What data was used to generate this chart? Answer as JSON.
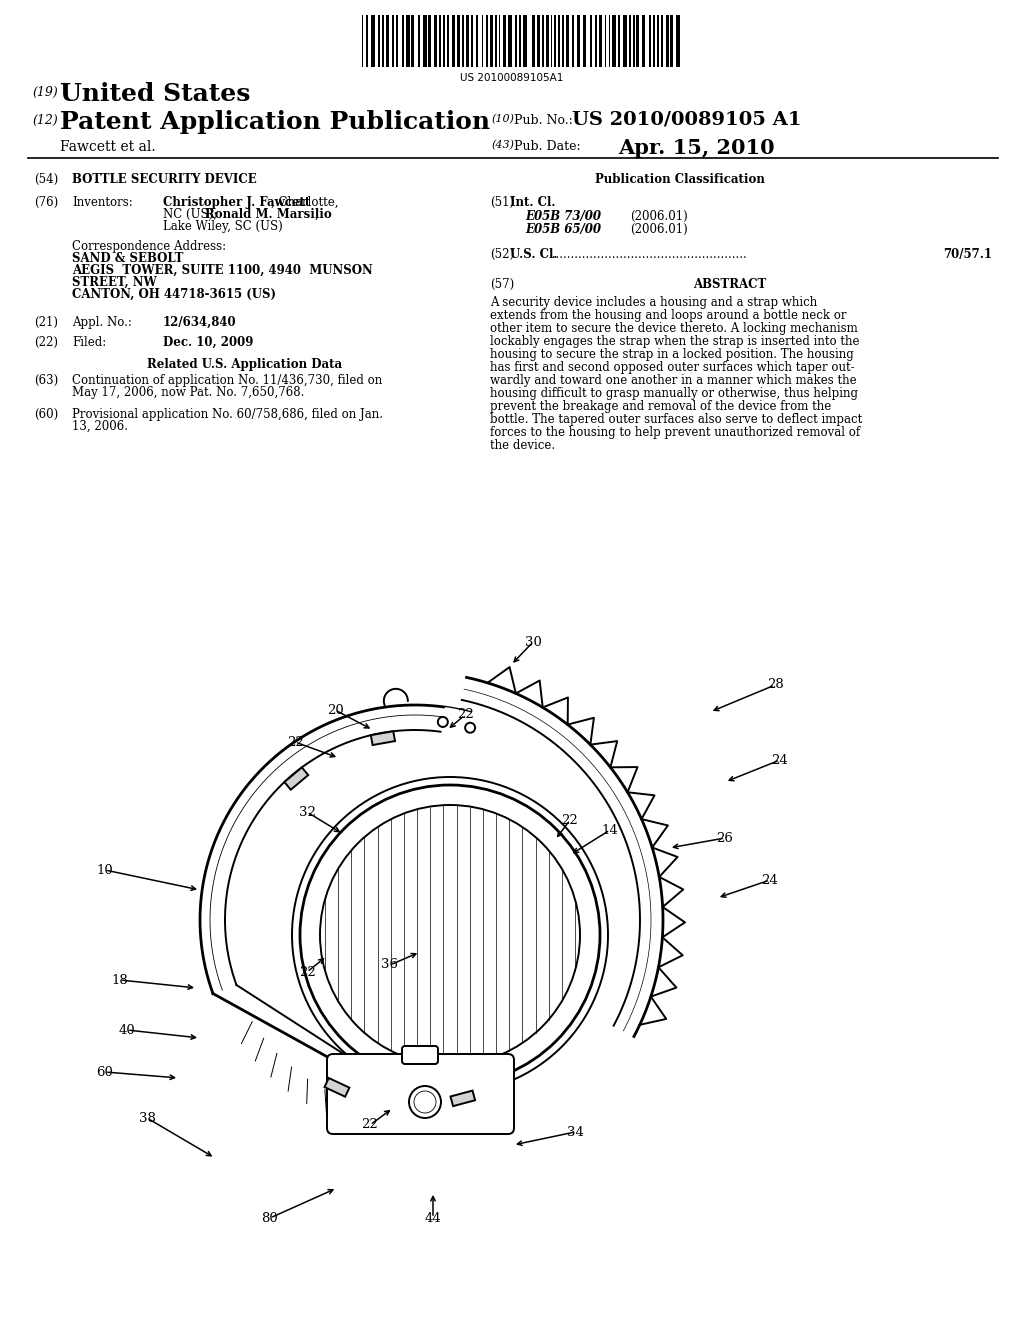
{
  "bg_color": "#ffffff",
  "barcode_text": "US 20100089105A1",
  "line1_num": "(19)",
  "line1_text": "United States",
  "line2_num": "(12)",
  "line2_text": "Patent Application Publication",
  "line2_right_num": "(10)",
  "line2_right_label": "Pub. No.:",
  "line2_right_val": "US 2010/0089105 A1",
  "line3_left": "Fawcett et al.",
  "line3_right_num": "(43)",
  "line3_right_label": "Pub. Date:",
  "line3_right_val": "Apr. 15, 2010",
  "sec54_num": "(54)",
  "sec54_title": "BOTTLE SECURITY DEVICE",
  "sec76_num": "(76)",
  "sec76_label": "Inventors:",
  "sec51_num": "(51)",
  "sec51_label": "Int. Cl.",
  "sec51_line1_code": "E05B 73/00",
  "sec51_line1_year": "(2006.01)",
  "sec51_line2_code": "E05B 65/00",
  "sec51_line2_year": "(2006.01)",
  "corr_label": "Correspondence Address:",
  "corr_line1": "SAND & SEBOLT",
  "corr_line2": "AEGIS  TOWER, SUITE 1100, 4940  MUNSON",
  "corr_line3": "STREET, NW",
  "corr_line4": "CANTON, OH 44718-3615 (US)",
  "sec21_num": "(21)",
  "sec21_label": "Appl. No.:",
  "sec21_val": "12/634,840",
  "sec22_num": "(22)",
  "sec22_label": "Filed:",
  "sec22_val": "Dec. 10, 2009",
  "related_title": "Related U.S. Application Data",
  "sec63_num": "(63)",
  "sec63_text1": "Continuation of application No. 11/436,730, filed on",
  "sec63_text2": "May 17, 2006, now Pat. No. 7,650,768.",
  "sec60_num": "(60)",
  "sec60_text1": "Provisional application No. 60/758,686, filed on Jan.",
  "sec60_text2": "13, 2006.",
  "pub_class_title": "Publication Classification",
  "sec52_num": "(52)",
  "sec52_label": "U.S. Cl.",
  "sec52_val": "70/57.1",
  "sec57_num": "(57)",
  "sec57_label": "ABSTRACT",
  "abstract_lines": [
    "A security device includes a housing and a strap which",
    "extends from the housing and loops around a bottle neck or",
    "other item to secure the device thereto. A locking mechanism",
    "lockably engages the strap when the strap is inserted into the",
    "housing to secure the strap in a locked position. The housing",
    "has first and second opposed outer surfaces which taper out-",
    "wardly and toward one another in a manner which makes the",
    "housing difficult to grasp manually or otherwise, thus helping",
    "prevent the breakage and removal of the device from the",
    "bottle. The tapered outer surfaces also serve to deflect impact",
    "forces to the housing to help prevent unauthorized removal of",
    "the device."
  ]
}
